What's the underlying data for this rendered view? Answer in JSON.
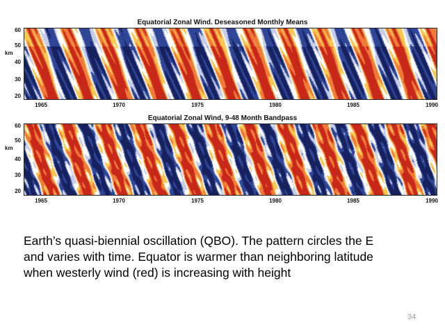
{
  "chart_data": [
    {
      "type": "heatmap",
      "title": "Equatorial Zonal Wind. Deseasoned Monthly Means",
      "ylabel": "km",
      "yticks": [
        "60",
        "50",
        "40",
        "30",
        "20"
      ],
      "xticks": [
        "1965",
        "1970",
        "1975",
        "1980",
        "1985",
        "1990"
      ],
      "xlim": [
        1963.5,
        1990
      ],
      "ylim": [
        20,
        60
      ],
      "period_months": 28,
      "colors": {
        "westerly": "#c8281a",
        "westerly_light": "#f07a3a",
        "westerly_pale": "#f8c850",
        "easterly": "#16215e",
        "easterly_light": "#2f4596",
        "easterly_pale": "#c6cde6",
        "neutral": "#ffffff"
      }
    },
    {
      "type": "heatmap",
      "title": "Equatorial Zonal Wind, 9-48 Month Bandpass",
      "ylabel": "km",
      "yticks": [
        "60",
        "50",
        "40",
        "30",
        "20"
      ],
      "xticks": [
        "1965",
        "1970",
        "1975",
        "1980",
        "1985",
        "1990"
      ],
      "xlim": [
        1963.5,
        1990
      ],
      "ylim": [
        20,
        60
      ],
      "period_months": 28,
      "colors": {
        "westerly": "#c8281a",
        "westerly_light": "#f07a3a",
        "westerly_pale": "#f8c850",
        "easterly": "#16215e",
        "easterly_light": "#2f4596",
        "easterly_pale": "#c6cde6",
        "neutral": "#ffffff"
      }
    }
  ],
  "caption": {
    "lines": [
      "Earth’s quasi-biennial oscillation (QBO). The pattern circles the E",
      "and varies with time. Equator is warmer than neighboring latitude",
      "when westerly wind (red) is increasing with height"
    ]
  },
  "page_number": "34"
}
